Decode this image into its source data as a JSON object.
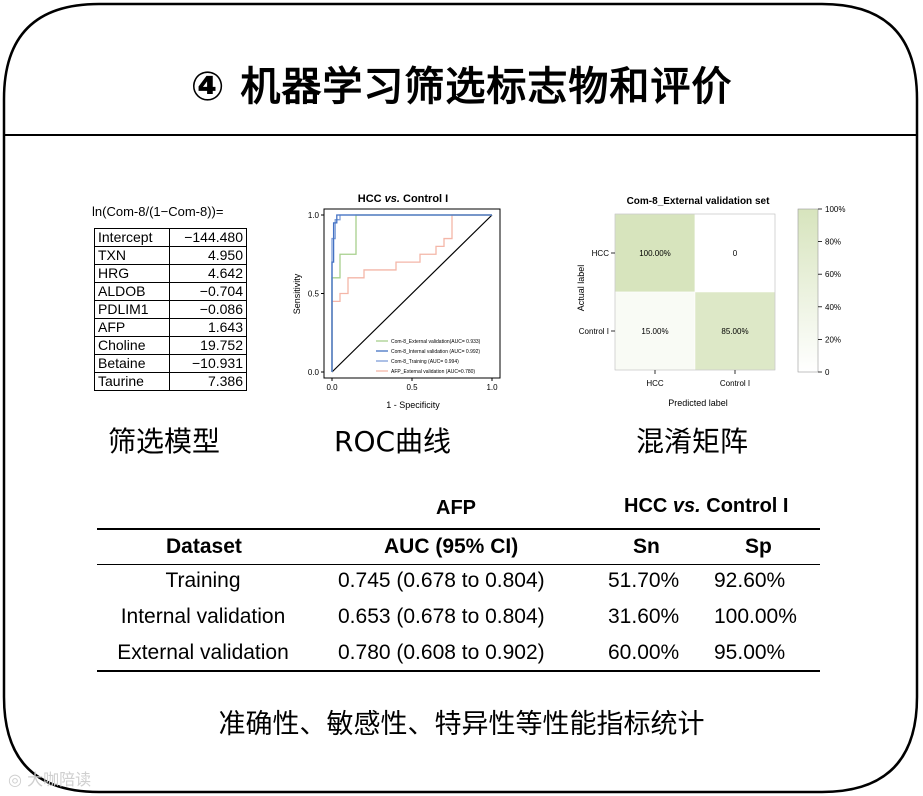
{
  "title": "④ 机器学习筛选标志物和评价",
  "model": {
    "formula": "ln(Com-8/(1−Com-8))=",
    "caption": "筛选模型",
    "rows": [
      {
        "name": "Intercept",
        "value": "−144.480"
      },
      {
        "name": "TXN",
        "value": "4.950"
      },
      {
        "name": "HRG",
        "value": "4.642"
      },
      {
        "name": "ALDOB",
        "value": "−0.704"
      },
      {
        "name": "PDLIM1",
        "value": "−0.086"
      },
      {
        "name": "AFP",
        "value": "1.643"
      },
      {
        "name": "Choline",
        "value": "19.752"
      },
      {
        "name": "Betaine",
        "value": "−10.931"
      },
      {
        "name": "Taurine",
        "value": "7.386"
      }
    ]
  },
  "roc": {
    "caption": "ROC曲线",
    "title": "HCC vs. Control I",
    "title_prefix": "HCC ",
    "title_italic": "vs.",
    "title_suffix": " Control I",
    "xlabel": "1 - Specificity",
    "ylabel": "Sensitivity",
    "xticks": [
      "0.0",
      "0.5",
      "1.0"
    ],
    "yticks": [
      "0.0",
      "0.5",
      "1.0"
    ],
    "colors": {
      "external": "#a8d08d",
      "internal": "#4472c4",
      "training": "#7f9fd8",
      "afp": "#f4b6a8",
      "diagonal": "#000000",
      "frame": "#000000"
    },
    "legend": [
      "Com-8_External validation(AUC= 0.933)",
      "Com-8_Internal validation (AUC= 0.992)",
      "Com-8_Training (AUC= 0.994)",
      "AFP_External validation (AUC=0.780)"
    ]
  },
  "confusion": {
    "caption": "混淆矩阵",
    "title": "Com-8_External validation set",
    "xlabel": "Predicted label",
    "ylabel": "Actual label",
    "row_labels": [
      "HCC",
      "Control I"
    ],
    "col_labels": [
      "HCC",
      "Control I"
    ],
    "cells": [
      [
        "100.00%",
        "0"
      ],
      [
        "15.00%",
        "85.00%"
      ]
    ],
    "cell_fractions": [
      [
        1.0,
        0.0
      ],
      [
        0.15,
        0.85
      ]
    ],
    "colorbar_ticks": [
      "100%",
      "80%",
      "60%",
      "40%",
      "20%",
      "0"
    ],
    "colors": {
      "high": "#d7e4bd",
      "low": "#ffffff",
      "mid": "#e9f0da"
    }
  },
  "perf": {
    "group": "AFP",
    "comparison_prefix": "HCC ",
    "comparison_italic": "vs.",
    "comparison_suffix": " Control I",
    "headers": {
      "dataset": "Dataset",
      "auc": "AUC (95% CI)",
      "sn": "Sn",
      "sp": "Sp"
    },
    "rows": [
      {
        "dataset": "Training",
        "auc": "0.745 (0.678 to 0.804)",
        "sn": "51.70%",
        "sp": "92.60%"
      },
      {
        "dataset": "Internal validation",
        "auc": "0.653 (0.678 to 0.804)",
        "sn": "31.60%",
        "sp": "100.00%"
      },
      {
        "dataset": "External validation",
        "auc": "0.780 (0.608 to 0.902)",
        "sn": "60.00%",
        "sp": "95.00%"
      }
    ]
  },
  "footer_caption": "准确性、敏感性、特异性等性能指标统计",
  "watermark": "大咖陪读",
  "chart_data": [
    {
      "type": "line",
      "title": "HCC vs. Control I",
      "xlabel": "1 - Specificity",
      "ylabel": "Sensitivity",
      "xlim": [
        0,
        1
      ],
      "ylim": [
        0,
        1
      ],
      "series": [
        {
          "name": "Com-8_External validation(AUC= 0.933)",
          "x": [
            0,
            0,
            0.05,
            0.05,
            0.15,
            0.15,
            1.0
          ],
          "y": [
            0,
            0.6,
            0.6,
            0.75,
            0.75,
            1.0,
            1.0
          ]
        },
        {
          "name": "Com-8_Internal validation (AUC= 0.992)",
          "x": [
            0,
            0,
            0.01,
            0.01,
            0.03,
            0.03,
            1.0
          ],
          "y": [
            0,
            0.7,
            0.7,
            0.95,
            0.95,
            1.0,
            1.0
          ]
        },
        {
          "name": "Com-8_Training (AUC= 0.994)",
          "x": [
            0,
            0,
            0.02,
            0.02,
            0.05,
            0.05,
            1.0
          ],
          "y": [
            0,
            0.85,
            0.85,
            0.97,
            0.97,
            1.0,
            1.0
          ]
        },
        {
          "name": "AFP_External validation (AUC=0.780)",
          "x": [
            0,
            0,
            0.05,
            0.05,
            0.1,
            0.1,
            0.2,
            0.2,
            0.4,
            0.4,
            0.55,
            0.55,
            0.65,
            0.65,
            0.7,
            0.7,
            0.75,
            0.75,
            1.0
          ],
          "y": [
            0,
            0.45,
            0.45,
            0.5,
            0.5,
            0.6,
            0.6,
            0.65,
            0.65,
            0.7,
            0.7,
            0.75,
            0.75,
            0.8,
            0.8,
            0.85,
            0.85,
            1.0,
            1.0
          ]
        }
      ]
    },
    {
      "type": "heatmap",
      "title": "Com-8_External validation set",
      "xlabel": "Predicted label",
      "ylabel": "Actual label",
      "categories_x": [
        "HCC",
        "Control I"
      ],
      "categories_y": [
        "HCC",
        "Control I"
      ],
      "values": [
        [
          1.0,
          0.0
        ],
        [
          0.15,
          0.85
        ]
      ],
      "colorbar_range": [
        0,
        1
      ]
    }
  ]
}
